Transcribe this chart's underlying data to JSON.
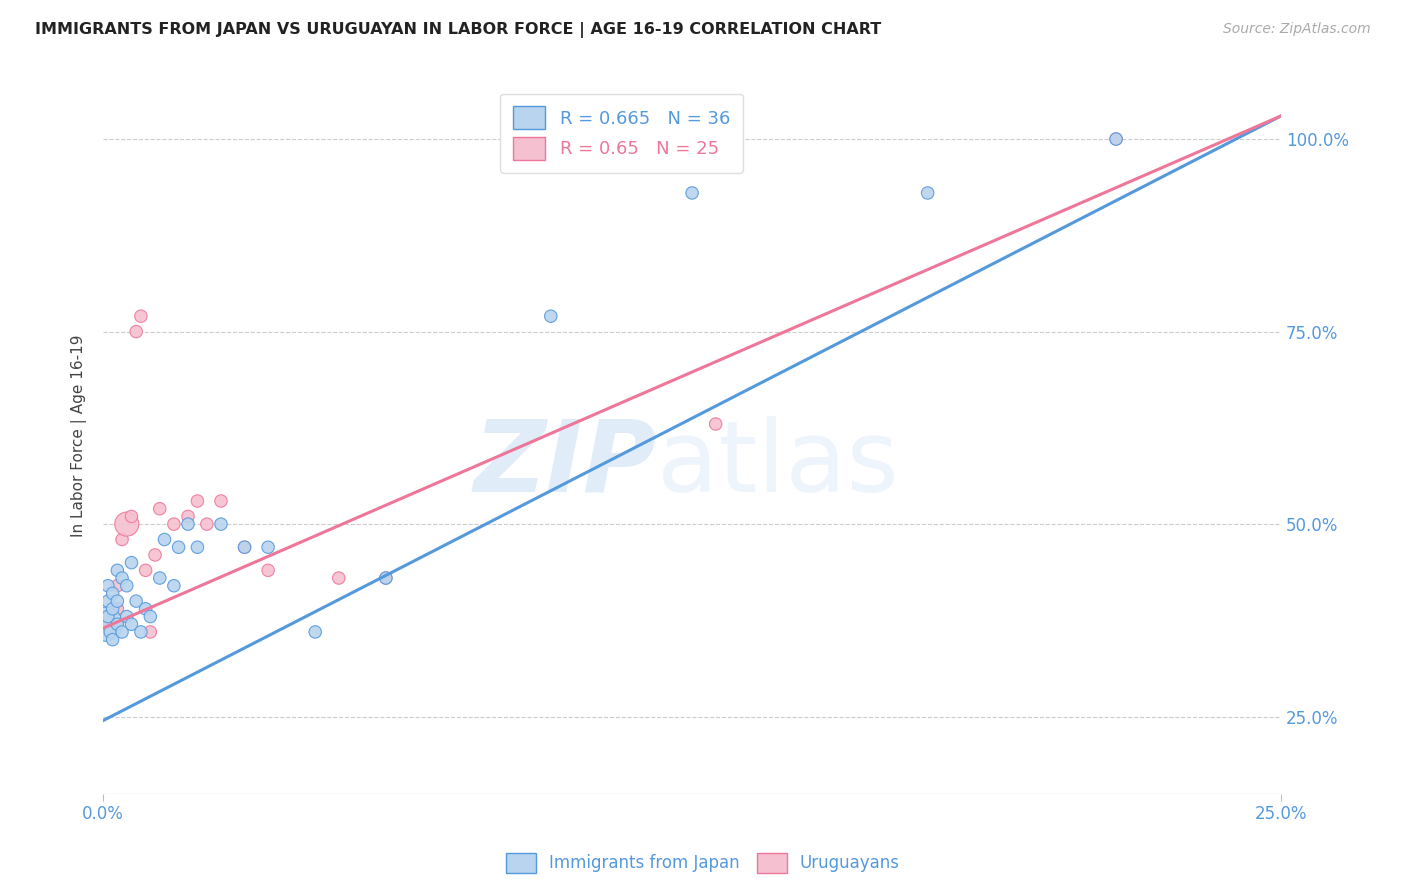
{
  "title": "IMMIGRANTS FROM JAPAN VS URUGUAYAN IN LABOR FORCE | AGE 16-19 CORRELATION CHART",
  "source": "Source: ZipAtlas.com",
  "ylabel": "In Labor Force | Age 16-19",
  "xlim": [
    0.0,
    0.25
  ],
  "ylim": [
    0.15,
    1.08
  ],
  "ytick_labels": [
    "25.0%",
    "50.0%",
    "75.0%",
    "100.0%"
  ],
  "ytick_values": [
    0.25,
    0.5,
    0.75,
    1.0
  ],
  "xtick_labels": [
    "0.0%",
    "25.0%"
  ],
  "xtick_values": [
    0.0,
    0.25
  ],
  "blue_color": "#b8d4ee",
  "pink_color": "#f5c0d0",
  "blue_line_color": "#5599dd",
  "pink_line_color": "#ee7799",
  "blue_R": 0.665,
  "blue_N": 36,
  "pink_R": 0.65,
  "pink_N": 25,
  "watermark_zip": "ZIP",
  "watermark_atlas": "atlas",
  "legend_label_blue": "Immigrants from Japan",
  "legend_label_pink": "Uruguayans",
  "blue_line_x0": 0.0,
  "blue_line_y0": 0.245,
  "blue_line_x1": 0.25,
  "blue_line_y1": 1.03,
  "pink_line_x0": 0.0,
  "pink_line_y0": 0.365,
  "pink_line_x1": 0.25,
  "pink_line_y1": 1.03,
  "blue_scatter_x": [
    0.0005,
    0.001,
    0.001,
    0.001,
    0.0015,
    0.002,
    0.002,
    0.002,
    0.003,
    0.003,
    0.003,
    0.004,
    0.004,
    0.005,
    0.005,
    0.006,
    0.006,
    0.007,
    0.008,
    0.009,
    0.01,
    0.012,
    0.013,
    0.015,
    0.016,
    0.018,
    0.02,
    0.025,
    0.03,
    0.035,
    0.045,
    0.06,
    0.095,
    0.125,
    0.175,
    0.215
  ],
  "blue_scatter_y": [
    0.37,
    0.38,
    0.4,
    0.42,
    0.36,
    0.35,
    0.39,
    0.41,
    0.37,
    0.4,
    0.44,
    0.36,
    0.43,
    0.38,
    0.42,
    0.37,
    0.45,
    0.4,
    0.36,
    0.39,
    0.38,
    0.43,
    0.48,
    0.42,
    0.47,
    0.5,
    0.47,
    0.5,
    0.47,
    0.47,
    0.36,
    0.43,
    0.77,
    0.93,
    0.93,
    1.0
  ],
  "blue_scatter_sizes": [
    600,
    80,
    80,
    80,
    80,
    80,
    80,
    80,
    80,
    80,
    80,
    80,
    80,
    80,
    80,
    80,
    80,
    80,
    80,
    80,
    80,
    80,
    80,
    80,
    80,
    80,
    80,
    80,
    80,
    80,
    80,
    80,
    80,
    80,
    80,
    80
  ],
  "pink_scatter_x": [
    0.0005,
    0.001,
    0.002,
    0.003,
    0.003,
    0.004,
    0.005,
    0.006,
    0.007,
    0.008,
    0.009,
    0.01,
    0.011,
    0.012,
    0.015,
    0.018,
    0.02,
    0.022,
    0.025,
    0.03,
    0.035,
    0.05,
    0.06,
    0.13,
    0.215
  ],
  "pink_scatter_y": [
    0.37,
    0.38,
    0.36,
    0.39,
    0.42,
    0.48,
    0.5,
    0.51,
    0.75,
    0.77,
    0.44,
    0.36,
    0.46,
    0.52,
    0.5,
    0.51,
    0.53,
    0.5,
    0.53,
    0.47,
    0.44,
    0.43,
    0.43,
    0.63,
    1.0
  ],
  "pink_scatter_sizes": [
    80,
    80,
    80,
    80,
    80,
    80,
    300,
    80,
    80,
    80,
    80,
    80,
    80,
    80,
    80,
    80,
    80,
    80,
    80,
    80,
    80,
    80,
    80,
    80,
    80
  ]
}
